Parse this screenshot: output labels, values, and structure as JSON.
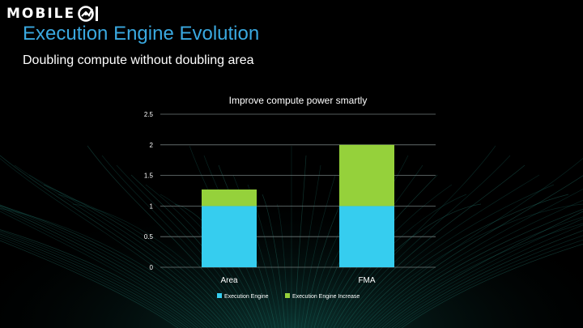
{
  "brand": {
    "logo_text": "MOBILE",
    "logo_mark": "01"
  },
  "slide": {
    "title": "Execution Engine Evolution",
    "subtitle": "Doubling compute without doubling area"
  },
  "colors": {
    "title": "#3aa9e0",
    "execution_engine": "#36cdef",
    "execution_engine_increase": "#95d13b"
  },
  "chart_data": {
    "type": "bar",
    "stacked": true,
    "title": "Improve compute power smartly",
    "categories": [
      "Area",
      "FMA"
    ],
    "series": [
      {
        "name": "Execution Engine",
        "values": [
          1,
          1
        ],
        "color": "#36cdef"
      },
      {
        "name": "Execution Engine Increase",
        "values": [
          0.27,
          1
        ],
        "color": "#95d13b"
      }
    ],
    "ylim": [
      0,
      2.5
    ],
    "yticks": [
      "0",
      "0.5",
      "1",
      "1.5",
      "2",
      "2.5"
    ],
    "grid": true,
    "legend": "bottom",
    "xlabel": "",
    "ylabel": ""
  }
}
